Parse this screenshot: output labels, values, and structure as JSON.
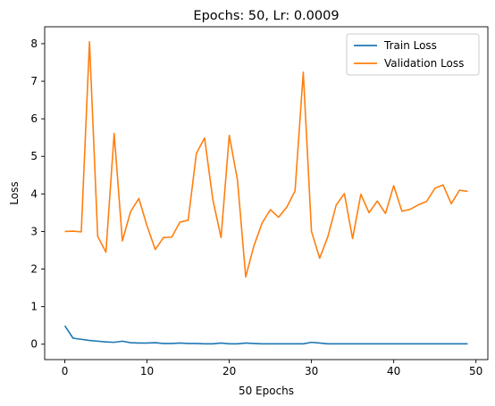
{
  "chart_data": {
    "type": "line",
    "title": "Epochs: 50, Lr: 0.0009",
    "xlabel": "50 Epochs",
    "ylabel": "Loss",
    "xlim": [
      -2.45,
      51.45
    ],
    "ylim": [
      -0.41,
      8.45
    ],
    "xticks": [
      0,
      10,
      20,
      30,
      40,
      50
    ],
    "yticks": [
      0,
      1,
      2,
      3,
      4,
      5,
      6,
      7,
      8
    ],
    "grid": false,
    "legend_position": "upper right",
    "x": [
      0,
      1,
      2,
      3,
      4,
      5,
      6,
      7,
      8,
      9,
      10,
      11,
      12,
      13,
      14,
      15,
      16,
      17,
      18,
      19,
      20,
      21,
      22,
      23,
      24,
      25,
      26,
      27,
      28,
      29,
      30,
      31,
      32,
      33,
      34,
      35,
      36,
      37,
      38,
      39,
      40,
      41,
      42,
      43,
      44,
      45,
      46,
      47,
      48,
      49
    ],
    "series": [
      {
        "name": "Train Loss",
        "color": "#1f77b4",
        "values": [
          0.49,
          0.16,
          0.13,
          0.1,
          0.08,
          0.06,
          0.05,
          0.08,
          0.04,
          0.03,
          0.03,
          0.04,
          0.02,
          0.02,
          0.03,
          0.02,
          0.02,
          0.01,
          0.01,
          0.03,
          0.01,
          0.01,
          0.03,
          0.02,
          0.01,
          0.01,
          0.01,
          0.01,
          0.01,
          0.01,
          0.05,
          0.03,
          0.01,
          0.01,
          0.01,
          0.01,
          0.01,
          0.01,
          0.01,
          0.01,
          0.01,
          0.01,
          0.01,
          0.01,
          0.01,
          0.01,
          0.01,
          0.01,
          0.01,
          0.01
        ]
      },
      {
        "name": "Validation Loss",
        "color": "#ff7f0e",
        "values": [
          3.0,
          3.01,
          2.99,
          8.05,
          2.87,
          2.45,
          5.61,
          2.75,
          3.53,
          3.88,
          3.15,
          2.52,
          2.84,
          2.85,
          3.25,
          3.3,
          5.08,
          5.49,
          3.85,
          2.84,
          5.56,
          4.37,
          1.79,
          2.62,
          3.23,
          3.58,
          3.38,
          3.65,
          4.08,
          7.24,
          3.0,
          2.29,
          2.87,
          3.7,
          4.01,
          2.81,
          3.99,
          3.5,
          3.81,
          3.48,
          4.22,
          3.54,
          3.59,
          3.71,
          3.8,
          4.15,
          4.24,
          3.74,
          4.1,
          4.07
        ]
      }
    ]
  }
}
